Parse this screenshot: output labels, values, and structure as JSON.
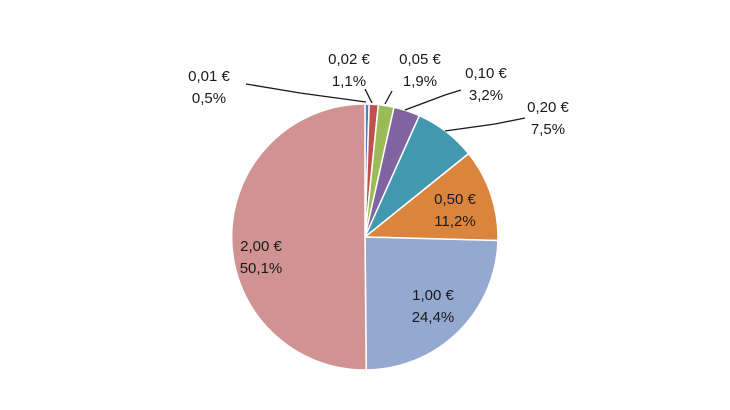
{
  "chart_data": {
    "type": "pie",
    "start": "12 o'clock",
    "direction": "clockwise",
    "legend": "none",
    "slices": [
      {
        "category": "0,01 €",
        "value": 0.5,
        "value_label": "0,5%",
        "color": "#4f81bd"
      },
      {
        "category": "0,02 €",
        "value": 1.1,
        "value_label": "1,1%",
        "color": "#c0504d"
      },
      {
        "category": "0,05 €",
        "value": 1.9,
        "value_label": "1,9%",
        "color": "#9bbb59"
      },
      {
        "category": "0,10 €",
        "value": 3.2,
        "value_label": "3,2%",
        "color": "#8064a2"
      },
      {
        "category": "0,20 €",
        "value": 7.5,
        "value_label": "7,5%",
        "color": "#4198af"
      },
      {
        "category": "0,50 €",
        "value": 11.2,
        "value_label": "11,2%",
        "color": "#db843d"
      },
      {
        "category": "1,00 €",
        "value": 24.4,
        "value_label": "24,4%",
        "color": "#93a9cf"
      },
      {
        "category": "2,00 €",
        "value": 50.1,
        "value_label": "50,1%",
        "color": "#d19392"
      }
    ]
  }
}
